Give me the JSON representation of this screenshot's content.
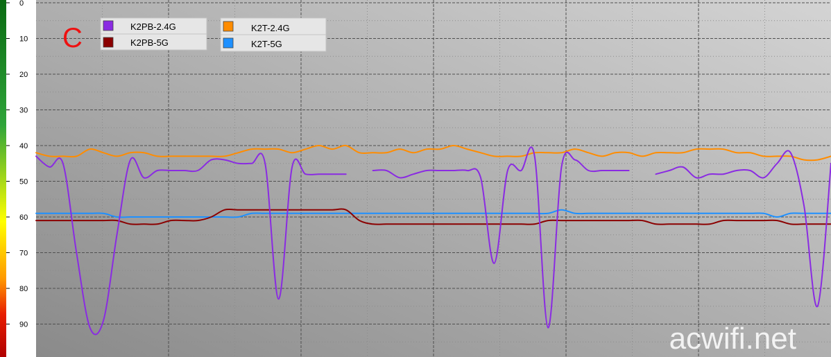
{
  "chart_data": {
    "type": "line",
    "title": "",
    "xlabel": "",
    "ylabel": "",
    "ylim": [
      0,
      100
    ],
    "y_inverted": true,
    "y_ticks": [
      "0",
      "10",
      "20",
      "30",
      "40",
      "50",
      "60",
      "70",
      "80",
      "90",
      "100"
    ],
    "grid": true,
    "legend_position": "top-left",
    "color_scale": {
      "low": "#0a6a12",
      "mid_high": "#2fa43a",
      "middle": "#ffff00",
      "upper": "#ff9a00",
      "high": "#d00000",
      "top": "#b00000"
    },
    "panel_letter": "C",
    "watermark": "acwifi.net",
    "x": [
      0,
      1,
      2,
      3,
      4,
      5,
      6,
      7,
      8,
      9,
      10,
      11,
      12,
      13,
      14,
      15,
      16,
      17,
      18,
      19,
      20,
      21,
      22,
      23,
      24,
      25,
      26,
      27,
      28,
      29,
      30,
      31,
      32,
      33,
      34,
      35,
      36,
      37,
      38,
      39,
      40,
      41,
      42,
      43,
      44,
      45,
      46,
      47,
      48,
      49,
      50,
      51,
      52,
      53,
      54,
      55,
      56,
      57,
      58,
      59
    ],
    "series": [
      {
        "name": "K2PB-2.4G",
        "color": "#8a2be2",
        "values": [
          43,
          46,
          45,
          70,
          91,
          89,
          65,
          44,
          49,
          47,
          47,
          47,
          47,
          44,
          44,
          45,
          45,
          45,
          83,
          46,
          48,
          48,
          48,
          48,
          null,
          47,
          47,
          49,
          48,
          47,
          47,
          47,
          47,
          49,
          73,
          47,
          47,
          43,
          91,
          46,
          44,
          47,
          47,
          47,
          47,
          null,
          48,
          47,
          46,
          49,
          48,
          48,
          47,
          47,
          49,
          45,
          42,
          57,
          85,
          45
        ],
        "gaps_after": [
          23,
          44
        ]
      },
      {
        "name": "K2PB-5G",
        "color": "#8b0000",
        "values": [
          61,
          61,
          61,
          61,
          61,
          61,
          61,
          62,
          62,
          62,
          61,
          61,
          61,
          60,
          58,
          58,
          58,
          58,
          58,
          58,
          58,
          58,
          58,
          58,
          61,
          62,
          62,
          62,
          62,
          62,
          62,
          62,
          62,
          62,
          62,
          62,
          62,
          62,
          61,
          61,
          61,
          61,
          61,
          61,
          61,
          61,
          62,
          62,
          62,
          62,
          62,
          61,
          61,
          61,
          61,
          61,
          62,
          62,
          62,
          62
        ]
      },
      {
        "name": "K2T-2.4G",
        "color": "#ff8c00",
        "values": [
          42,
          43,
          43,
          43,
          41,
          42,
          43,
          42,
          42,
          43,
          43,
          43,
          43,
          43,
          43,
          42,
          41,
          41,
          41,
          42,
          41,
          40,
          41,
          40,
          42,
          42,
          42,
          41,
          42,
          41,
          41,
          40,
          41,
          42,
          43,
          43,
          43,
          42,
          42,
          42,
          41,
          42,
          43,
          42,
          42,
          43,
          42,
          42,
          42,
          41,
          41,
          41,
          42,
          42,
          43,
          43,
          43,
          44,
          44,
          43
        ]
      },
      {
        "name": "K2T-5G",
        "color": "#1e90ff",
        "values": [
          59,
          59,
          59,
          59,
          59,
          59,
          60,
          60,
          60,
          60,
          60,
          60,
          60,
          60,
          60,
          60,
          59,
          59,
          59,
          59,
          59,
          59,
          59,
          59,
          59,
          59,
          59,
          59,
          59,
          59,
          59,
          59,
          59,
          59,
          59,
          59,
          59,
          59,
          59,
          58,
          59,
          59,
          59,
          59,
          59,
          59,
          59,
          59,
          59,
          59,
          59,
          59,
          59,
          59,
          59,
          60,
          59,
          59,
          59,
          59
        ]
      }
    ]
  }
}
